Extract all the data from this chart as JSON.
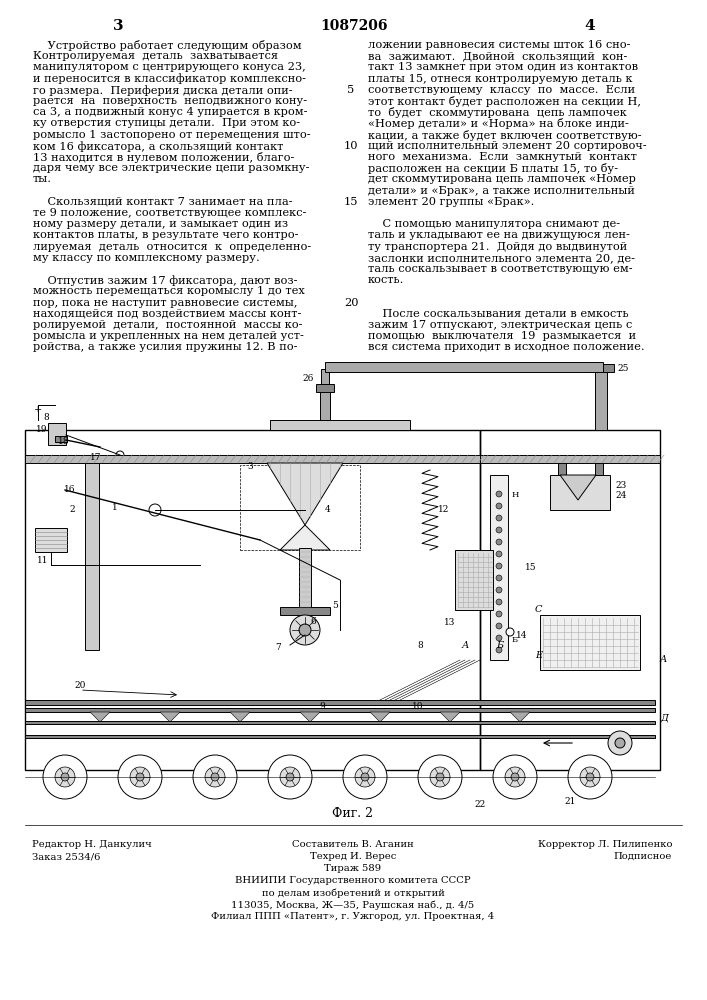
{
  "page_number_center": "1087206",
  "page_number_left": "3",
  "page_number_right": "4",
  "col_left_text": [
    "    Устройство работает следующим образом",
    "Контролируемая  деталь  захватывается",
    "манипулятором с центрирующего конуса 23,",
    "и переносится в классификатор комплексно-",
    "го размера.  Периферия диска детали опи-",
    "рается  на  поверхность  неподвижного кону-",
    "са 3, а подвижный конус 4 упирается в кром-",
    "ку отверстия ступицы детали.  При этом ко-",
    "ромысло 1 застопорено от перемещения што-",
    "ком 16 фиксатора, а скользящий контакт",
    "13 находится в нулевом положении, благо-",
    "даря чему все электрические цепи разомкну-",
    "ты.",
    "",
    "    Скользящий контакт 7 занимает на пла-",
    "те 9 положение, соответствующее комплекс-",
    "ному размеру детали, и замыкает один из",
    "контактов платы, в результате чего контро-",
    "лируемая  деталь  относится  к  определенно-",
    "му классу по комплексному размеру.",
    "",
    "    Отпустив зажим 17 фиксатора, дают воз-",
    "можность перемещаться коромыслу 1 до тех",
    "пор, пока не наступит равновесие системы,",
    "находящейся под воздействием массы конт-",
    "ролируемой  детали,  постоянной  массы ко-",
    "ромысла и укрепленных на нем деталей уст-",
    "ройства, а также усилия пружины 12. В по-"
  ],
  "col_right_text": [
    "ложении равновесия системы шток 16 сно-",
    "ва  зажимают.  Двойной  скользящий  кон-",
    "такт 13 замкнет при этом один из контактов",
    "платы 15, отнеся контролируемую деталь к",
    "соответствующему  классу  по  массе.  Если",
    "этот контакт будет расположен на секции Н,",
    "то  будет  скоммутирована  цепь лампочек",
    "«Номер детали» и «Норма» на блоке инди-",
    "кации, а также будет включен соответствую-",
    "щий исполнительный элемент 20 сортировоч-",
    "ного  механизма.  Если  замкнутый  контакт",
    "расположен на секции Б платы 15, то бу-",
    "дет скоммутирована цепь лампочек «Номер",
    "детали» и «Брак», а также исполнительный",
    "элемент 20 группы «Брак».",
    "",
    "    С помощью манипулятора снимают де-",
    "таль и укладывают ее на движущуюся лен-",
    "ту транспортера 21.  Дойдя до выдвинутой",
    "заслонки исполнительного элемента 20, де-",
    "таль соскальзывает в соответствующую ем-",
    "кость.",
    "",
    "",
    "    После соскальзывания детали в емкость",
    "зажим 17 отпускают, электрическая цепь с",
    "помощью  выключателя  19  размыкается  и",
    "вся система приходит в исходное положение."
  ],
  "line_numbers": [
    [
      5,
      4
    ],
    [
      10,
      9
    ],
    [
      15,
      14
    ],
    [
      20,
      23
    ]
  ],
  "fig_caption": "Фиг. 2",
  "footer_left1": "Редактор Н. Данкулич",
  "footer_left2": "Заказ 2534/6",
  "footer_center1": "Составитель В. Аганин",
  "footer_center2": "Техред И. Верес",
  "footer_center3": "Тираж 589",
  "footer_center4": "ВНИИПИ Государственного комитета СССР",
  "footer_center5": "по делам изобретений и открытий",
  "footer_center6": "113035, Москва, Ж—35, Раушская наб., д. 4/5",
  "footer_center7": "Филиал ППП «Патент», г. Ужгород, ул. Проектная, 4",
  "footer_right1": "Корректор Л. Пилипенко",
  "footer_right2": "Подписное",
  "background_color": "#ffffff",
  "text_color": "#000000",
  "font_size_body": 8.2,
  "font_size_header": 10,
  "font_size_footer": 7.2
}
